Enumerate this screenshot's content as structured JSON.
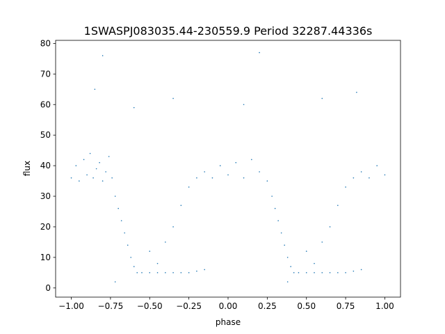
{
  "chart_data": {
    "type": "scatter",
    "title": "1SWASPJ083035.44-230559.9 Period 32287.44336s",
    "xlabel": "phase",
    "ylabel": "flux",
    "xlim": [
      -1.1,
      1.1
    ],
    "ylim": [
      -3,
      81
    ],
    "xticks": [
      -1.0,
      -0.75,
      -0.5,
      -0.25,
      0.0,
      0.25,
      0.5,
      0.75,
      1.0
    ],
    "xtick_labels": [
      "−1.00",
      "−0.75",
      "−0.50",
      "−0.25",
      "0.00",
      "0.25",
      "0.50",
      "0.75",
      "1.00"
    ],
    "yticks": [
      0,
      10,
      20,
      30,
      40,
      50,
      60,
      70,
      80
    ],
    "ytick_labels": [
      "0",
      "10",
      "20",
      "30",
      "40",
      "50",
      "60",
      "70",
      "80"
    ],
    "grid": false,
    "marker_color": "#1f77b4",
    "series": [
      {
        "values_description": "folded light curve: baseline flux ~33-46 across phase; eclipse floor ~5 between phase -0.57..-0.13 and 0.43..0.87 with V-shaped ingress/egress branches; sparse outliers up to ~78",
        "points": [
          [
            -1.0,
            36
          ],
          [
            -0.97,
            40
          ],
          [
            -0.95,
            35
          ],
          [
            -0.92,
            42
          ],
          [
            -0.9,
            37
          ],
          [
            -0.88,
            44
          ],
          [
            -0.86,
            36
          ],
          [
            -0.84,
            39
          ],
          [
            -0.82,
            41
          ],
          [
            -0.8,
            35
          ],
          [
            -0.78,
            38
          ],
          [
            -0.76,
            43
          ],
          [
            -0.74,
            36
          ],
          [
            -0.72,
            30
          ],
          [
            -0.7,
            26
          ],
          [
            -0.68,
            22
          ],
          [
            -0.66,
            18
          ],
          [
            -0.64,
            14
          ],
          [
            -0.62,
            10
          ],
          [
            -0.6,
            7
          ],
          [
            -0.58,
            5
          ],
          [
            -0.55,
            5
          ],
          [
            -0.5,
            5
          ],
          [
            -0.45,
            5
          ],
          [
            -0.4,
            5
          ],
          [
            -0.35,
            5
          ],
          [
            -0.3,
            5
          ],
          [
            -0.25,
            5
          ],
          [
            -0.2,
            5.5
          ],
          [
            -0.15,
            6
          ],
          [
            -0.5,
            12
          ],
          [
            -0.45,
            8
          ],
          [
            -0.4,
            15
          ],
          [
            -0.35,
            20
          ],
          [
            -0.3,
            27
          ],
          [
            -0.25,
            33
          ],
          [
            -0.2,
            36
          ],
          [
            -0.15,
            38
          ],
          [
            -0.1,
            36
          ],
          [
            -0.05,
            40
          ],
          [
            0.0,
            37
          ],
          [
            0.05,
            41
          ],
          [
            0.1,
            36
          ],
          [
            0.15,
            42
          ],
          [
            0.2,
            38
          ],
          [
            0.25,
            35
          ],
          [
            0.28,
            30
          ],
          [
            0.3,
            26
          ],
          [
            0.32,
            22
          ],
          [
            0.34,
            18
          ],
          [
            0.36,
            14
          ],
          [
            0.38,
            10
          ],
          [
            0.4,
            7
          ],
          [
            0.42,
            5
          ],
          [
            0.45,
            5
          ],
          [
            0.5,
            5
          ],
          [
            0.55,
            5
          ],
          [
            0.6,
            5
          ],
          [
            0.65,
            5
          ],
          [
            0.7,
            5
          ],
          [
            0.75,
            5
          ],
          [
            0.8,
            5.5
          ],
          [
            0.85,
            6
          ],
          [
            0.5,
            12
          ],
          [
            0.55,
            8
          ],
          [
            0.6,
            15
          ],
          [
            0.65,
            20
          ],
          [
            0.7,
            27
          ],
          [
            0.75,
            33
          ],
          [
            0.8,
            36
          ],
          [
            0.85,
            38
          ],
          [
            0.9,
            36
          ],
          [
            0.95,
            40
          ],
          [
            1.0,
            37
          ],
          [
            -0.8,
            76
          ],
          [
            0.2,
            77
          ],
          [
            -0.6,
            59
          ],
          [
            -0.35,
            62
          ],
          [
            0.1,
            60
          ],
          [
            0.82,
            64
          ],
          [
            -0.85,
            65
          ],
          [
            0.6,
            62
          ],
          [
            -0.72,
            2
          ],
          [
            0.38,
            2
          ]
        ]
      }
    ]
  }
}
